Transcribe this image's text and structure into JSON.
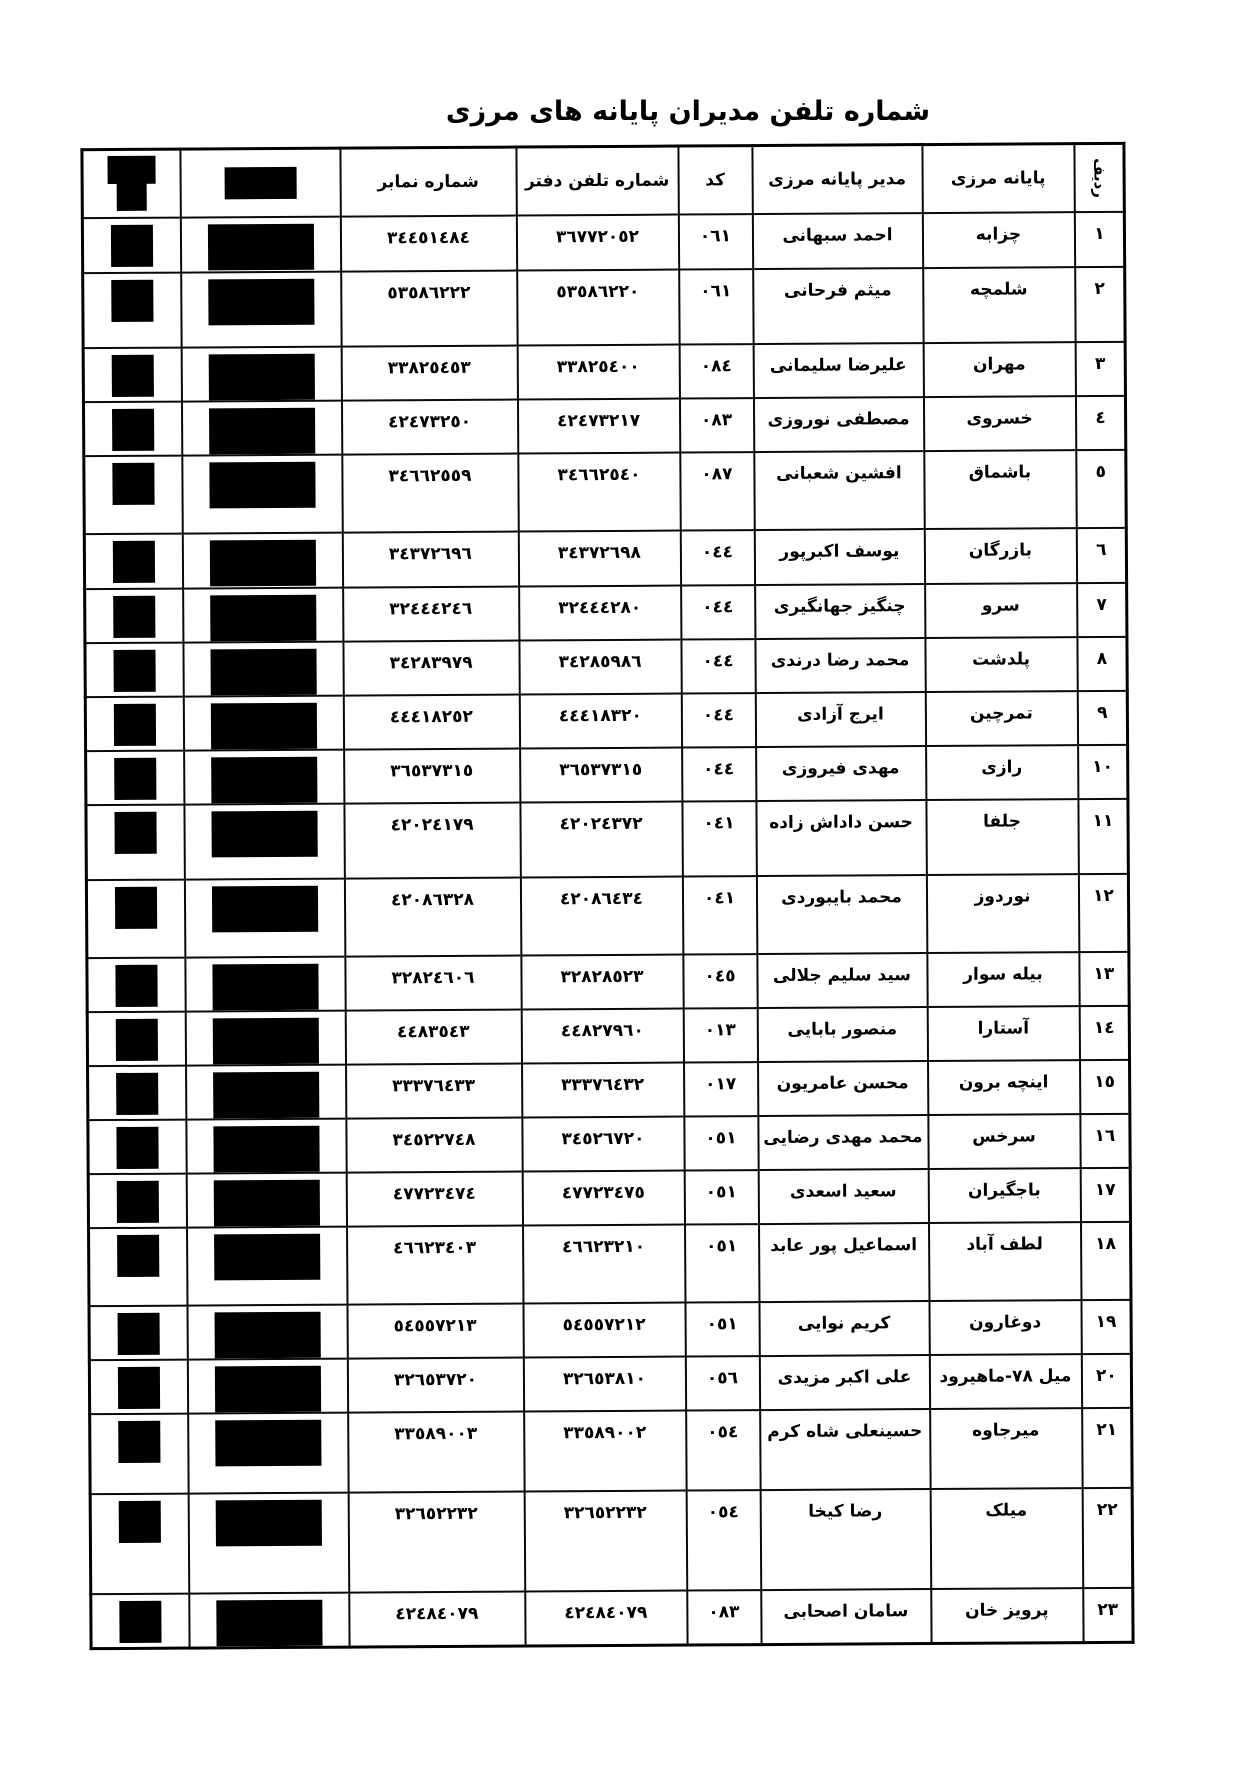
{
  "title": "شماره تلفن مدیران پایانه های مرزی",
  "table": {
    "headers": {
      "row": "ردیف",
      "terminal": "پایانه مرزی",
      "manager": "مدیر  پایانه مرزی",
      "code": "کد",
      "office_phone": "شماره تلفن دفتر",
      "fax": "شماره نمابر",
      "redacted_icon": "redaction-black-box"
    },
    "rows": [
      {
        "row": "١",
        "terminal": "چزابه",
        "manager": "احمد سبهانی",
        "code": "٠٦١",
        "office_phone": "٣٦٧٧٢٠٥٢",
        "fax": "٣٤٤٥١٤٨٤"
      },
      {
        "row": "٢",
        "terminal": "شلمچه",
        "manager": "میثم فرحانی",
        "code": "٠٦١",
        "office_phone": "٥٣٥٨٦٢٢٠",
        "fax": "٥٣٥٨٦٢٢٢"
      },
      {
        "row": "٣",
        "terminal": "مهران",
        "manager": "علیرضا سلیمانی",
        "code": "٠٨٤",
        "office_phone": "٣٣٨٢٥٤٠٠",
        "fax": "٣٣٨٢٥٤٥٣"
      },
      {
        "row": "٤",
        "terminal": "خسروی",
        "manager": "مصطفی نوروزی",
        "code": "٠٨٣",
        "office_phone": "٤٢٤٧٣٢١٧",
        "fax": "٤٢٤٧٣٢٥٠"
      },
      {
        "row": "٥",
        "terminal": "باشماق",
        "manager": "افشین شعبانی",
        "code": "٠٨٧",
        "office_phone": "٣٤٦٦٢٥٤٠",
        "fax": "٣٤٦٦٢٥٥٩"
      },
      {
        "row": "٦",
        "terminal": "بازرگان",
        "manager": "یوسف اکبرپور",
        "code": "٠٤٤",
        "office_phone": "٣٤٣٧٢٦٩٨",
        "fax": "٣٤٣٧٢٦٩٦"
      },
      {
        "row": "٧",
        "terminal": "سرو",
        "manager": "چنگیز جهانگیری",
        "code": "٠٤٤",
        "office_phone": "٣٢٤٤٤٢٨٠",
        "fax": "٣٢٤٤٤٢٤٦"
      },
      {
        "row": "٨",
        "terminal": "پلدشت",
        "manager": "محمد رضا درندی",
        "code": "٠٤٤",
        "office_phone": "٣٤٢٨٥٩٨٦",
        "fax": "٣٤٢٨٣٩٧٩"
      },
      {
        "row": "٩",
        "terminal": "تمرچین",
        "manager": "ایرج آزادی",
        "code": "٠٤٤",
        "office_phone": "٤٤٤١٨٣٢٠",
        "fax": "٤٤٤١٨٢٥٢"
      },
      {
        "row": "١٠",
        "terminal": "رازی",
        "manager": "مهدی فیروزی",
        "code": "٠٤٤",
        "office_phone": "٣٦٥٣٧٣١٥",
        "fax": "٣٦٥٣٧٣١٥"
      },
      {
        "row": "١١",
        "terminal": "جلفا",
        "manager": "حسن داداش زاده",
        "code": "٠٤١",
        "office_phone": "٤٢٠٢٤٣٧٢",
        "fax": "٤٢٠٢٤١٧٩"
      },
      {
        "row": "١٢",
        "terminal": "نوردوز",
        "manager": "محمد بایبوردی",
        "code": "٠٤١",
        "office_phone": "٤٢٠٨٦٤٣٤",
        "fax": "٤٢٠٨٦٣٢٨"
      },
      {
        "row": "١٣",
        "terminal": "بیله سوار",
        "manager": "سید سلیم جلالی",
        "code": "٠٤٥",
        "office_phone": "٣٢٨٢٨٥٢٣",
        "fax": "٣٢٨٢٤٦٠٦"
      },
      {
        "row": "١٤",
        "terminal": "آستارا",
        "manager": "منصور بابایی",
        "code": "٠١٣",
        "office_phone": "٤٤٨٢٧٩٦٠",
        "fax": "٤٤٨٣٥٤٣"
      },
      {
        "row": "١٥",
        "terminal": "اینچه برون",
        "manager": "محسن عامریون",
        "code": "٠١٧",
        "office_phone": "٣٣٣٧٦٤٣٢",
        "fax": "٣٣٣٧٦٤٣٣"
      },
      {
        "row": "١٦",
        "terminal": "سرخس",
        "manager": "محمد مهدی رضایی",
        "code": "٠٥١",
        "office_phone": "٣٤٥٢٦٧٢٠",
        "fax": "٣٤٥٢٢٧٤٨"
      },
      {
        "row": "١٧",
        "terminal": "باجگیران",
        "manager": "سعید اسعدی",
        "code": "٠٥١",
        "office_phone": "٤٧٧٢٣٤٧٥",
        "fax": "٤٧٧٢٣٤٧٤"
      },
      {
        "row": "١٨",
        "terminal": "لطف آباد",
        "manager": "اسماعیل پور عابد",
        "code": "٠٥١",
        "office_phone": "٤٦٦٢٣٢١٠",
        "fax": "٤٦٦٢٣٤٠٣"
      },
      {
        "row": "١٩",
        "terminal": "دوغارون",
        "manager": "کریم نوایی",
        "code": "٠٥١",
        "office_phone": "٥٤٥٥٧٢١٢",
        "fax": "٥٤٥٥٧٢١٣"
      },
      {
        "row": "٢٠",
        "terminal": "میل ٧٨-ماهیرود",
        "manager": "علی اکبر مزیدی",
        "code": "٠٥٦",
        "office_phone": "٣٢٦٥٣٨١٠",
        "fax": "٣٢٦٥٣٧٢٠"
      },
      {
        "row": "٢١",
        "terminal": "میرجاوه",
        "manager": "حسینعلی شاه کرم",
        "code": "٠٥٤",
        "office_phone": "٣٣٥٨٩٠٠٢",
        "fax": "٣٣٥٨٩٠٠٣"
      },
      {
        "row": "٢٢",
        "terminal": "میلک",
        "manager": "رضا کیخا",
        "code": "٠٥٤",
        "office_phone": "٣٢٦٥٢٢٣٢",
        "fax": "٣٢٦٥٢٢٣٢"
      },
      {
        "row": "٢٣",
        "terminal": "پرویز خان",
        "manager": "سامان اصحابی",
        "code": "٠٨٣",
        "office_phone": "٤٢٤٨٤٠٧٩",
        "fax": "٤٢٤٨٤٠٧٩"
      }
    ]
  }
}
